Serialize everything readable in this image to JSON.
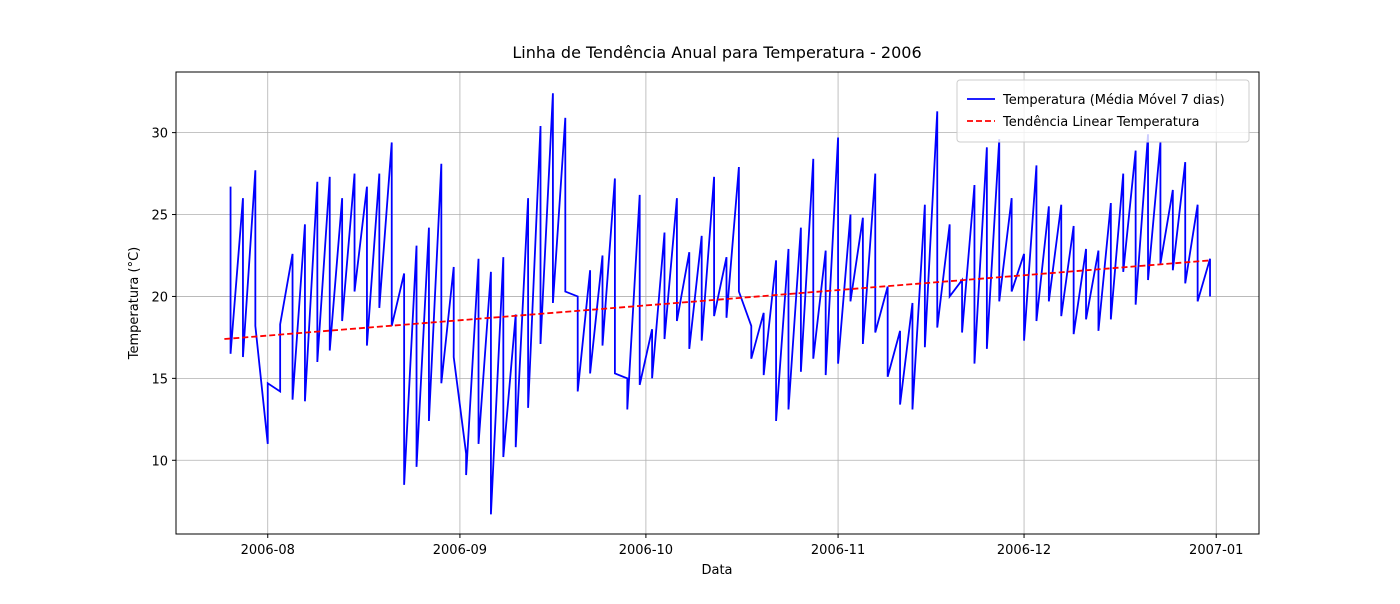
{
  "chart_data": {
    "type": "line",
    "title": "Linha de Tendência Anual para Temperatura - 2006",
    "x_label": "Data",
    "y_label": "Temperatura (°C)",
    "xlim": [
      13346.2,
      13520.9
    ],
    "ylim": [
      5.5,
      33.7
    ],
    "xticks": [
      {
        "value": 13361,
        "label": "2006-08"
      },
      {
        "value": 13392,
        "label": "2006-09"
      },
      {
        "value": 13422,
        "label": "2006-10"
      },
      {
        "value": 13453,
        "label": "2006-11"
      },
      {
        "value": 13483,
        "label": "2006-12"
      },
      {
        "value": 13514,
        "label": "2007-01"
      }
    ],
    "yticks": [
      10,
      15,
      20,
      25,
      30
    ],
    "grid": true,
    "legend": "upper right",
    "series": [
      {
        "name": "Temperatura (Média Móvel 7 dias)",
        "color": "#0000ff",
        "dash": false,
        "x": [
          13355,
          13355,
          13357,
          13357,
          13359,
          13359,
          13361,
          13361,
          13363,
          13363,
          13365,
          13365,
          13367,
          13367,
          13369,
          13369,
          13371,
          13371,
          13373,
          13373,
          13375,
          13375,
          13377,
          13377,
          13379,
          13379,
          13381,
          13381,
          13383,
          13383,
          13385,
          13385,
          13387,
          13387,
          13389,
          13389,
          13391,
          13391,
          13393,
          13393,
          13395,
          13395,
          13397,
          13397,
          13399,
          13399,
          13401,
          13401,
          13403,
          13403,
          13405,
          13405,
          13407,
          13407,
          13409,
          13409,
          13411,
          13411,
          13413,
          13413,
          13415,
          13415,
          13417,
          13417,
          13419,
          13419,
          13421,
          13421,
          13423,
          13423,
          13425,
          13425,
          13427,
          13427,
          13429,
          13429,
          13431,
          13431,
          13433,
          13433,
          13435,
          13435,
          13437,
          13437,
          13439,
          13439,
          13441,
          13441,
          13443,
          13443,
          13445,
          13445,
          13447,
          13447,
          13449,
          13449,
          13451,
          13451,
          13453,
          13453,
          13455,
          13455,
          13457,
          13457,
          13459,
          13459,
          13461,
          13461,
          13463,
          13463,
          13465,
          13465,
          13467,
          13467,
          13469,
          13469,
          13471,
          13471,
          13473,
          13473,
          13475,
          13475,
          13477,
          13477,
          13479,
          13479,
          13481,
          13481,
          13483,
          13483,
          13485,
          13485,
          13487,
          13487,
          13489,
          13489,
          13491,
          13491,
          13493,
          13493,
          13495,
          13495,
          13497,
          13497,
          13499,
          13499,
          13501,
          13501,
          13503,
          13503,
          13505,
          13505,
          13507,
          13507,
          13509,
          13509,
          13511,
          13511,
          13513,
          13513
        ],
        "values": [
          26.7,
          16.5,
          26.0,
          16.3,
          27.7,
          18.2,
          11.0,
          14.7,
          14.2,
          18.3,
          22.6,
          13.7,
          24.4,
          13.6,
          27.0,
          16.0,
          27.3,
          16.7,
          26.0,
          18.5,
          27.5,
          20.3,
          26.7,
          17.0,
          27.5,
          19.3,
          29.4,
          18.2,
          21.4,
          8.5,
          23.1,
          9.6,
          24.2,
          12.4,
          28.1,
          14.7,
          21.8,
          16.3,
          10.4,
          9.1,
          22.3,
          11.0,
          21.5,
          6.7,
          22.4,
          10.2,
          18.9,
          10.8,
          26.0,
          13.2,
          30.4,
          17.1,
          32.4,
          19.6,
          30.9,
          20.3,
          20.0,
          14.2,
          21.6,
          15.3,
          22.5,
          17.0,
          27.2,
          15.3,
          15.0,
          13.1,
          26.2,
          14.6,
          18.0,
          15.0,
          23.9,
          17.4,
          26.0,
          18.5,
          22.7,
          16.8,
          23.7,
          17.3,
          27.3,
          18.8,
          22.4,
          18.7,
          27.9,
          20.3,
          18.2,
          16.2,
          19.0,
          15.2,
          22.2,
          12.4,
          22.9,
          13.1,
          24.2,
          15.4,
          28.4,
          16.2,
          22.8,
          15.2,
          29.7,
          15.9,
          25.0,
          19.7,
          24.8,
          17.1,
          27.5,
          17.8,
          20.6,
          15.1,
          17.9,
          13.4,
          19.6,
          13.1,
          25.6,
          16.9,
          31.3,
          18.1,
          24.4,
          20.0,
          21.0,
          17.8,
          26.8,
          15.9,
          29.1,
          16.8,
          29.6,
          19.7,
          26.0,
          20.3,
          22.6,
          17.3,
          28.0,
          18.5,
          25.5,
          19.7,
          25.6,
          18.8,
          24.3,
          17.7,
          22.9,
          18.6,
          22.8,
          17.9,
          25.7,
          18.6,
          27.5,
          21.5,
          28.9,
          19.5,
          29.9,
          21.0,
          29.4,
          22.0,
          26.5,
          21.6,
          28.2,
          20.8,
          25.6,
          19.7,
          22.3,
          20.0
        ]
      },
      {
        "name": "Tendência Linear Temperatura",
        "color": "#ff0000",
        "dash": true,
        "x": [
          13354,
          13513
        ],
        "values": [
          17.4,
          22.2
        ]
      }
    ]
  }
}
